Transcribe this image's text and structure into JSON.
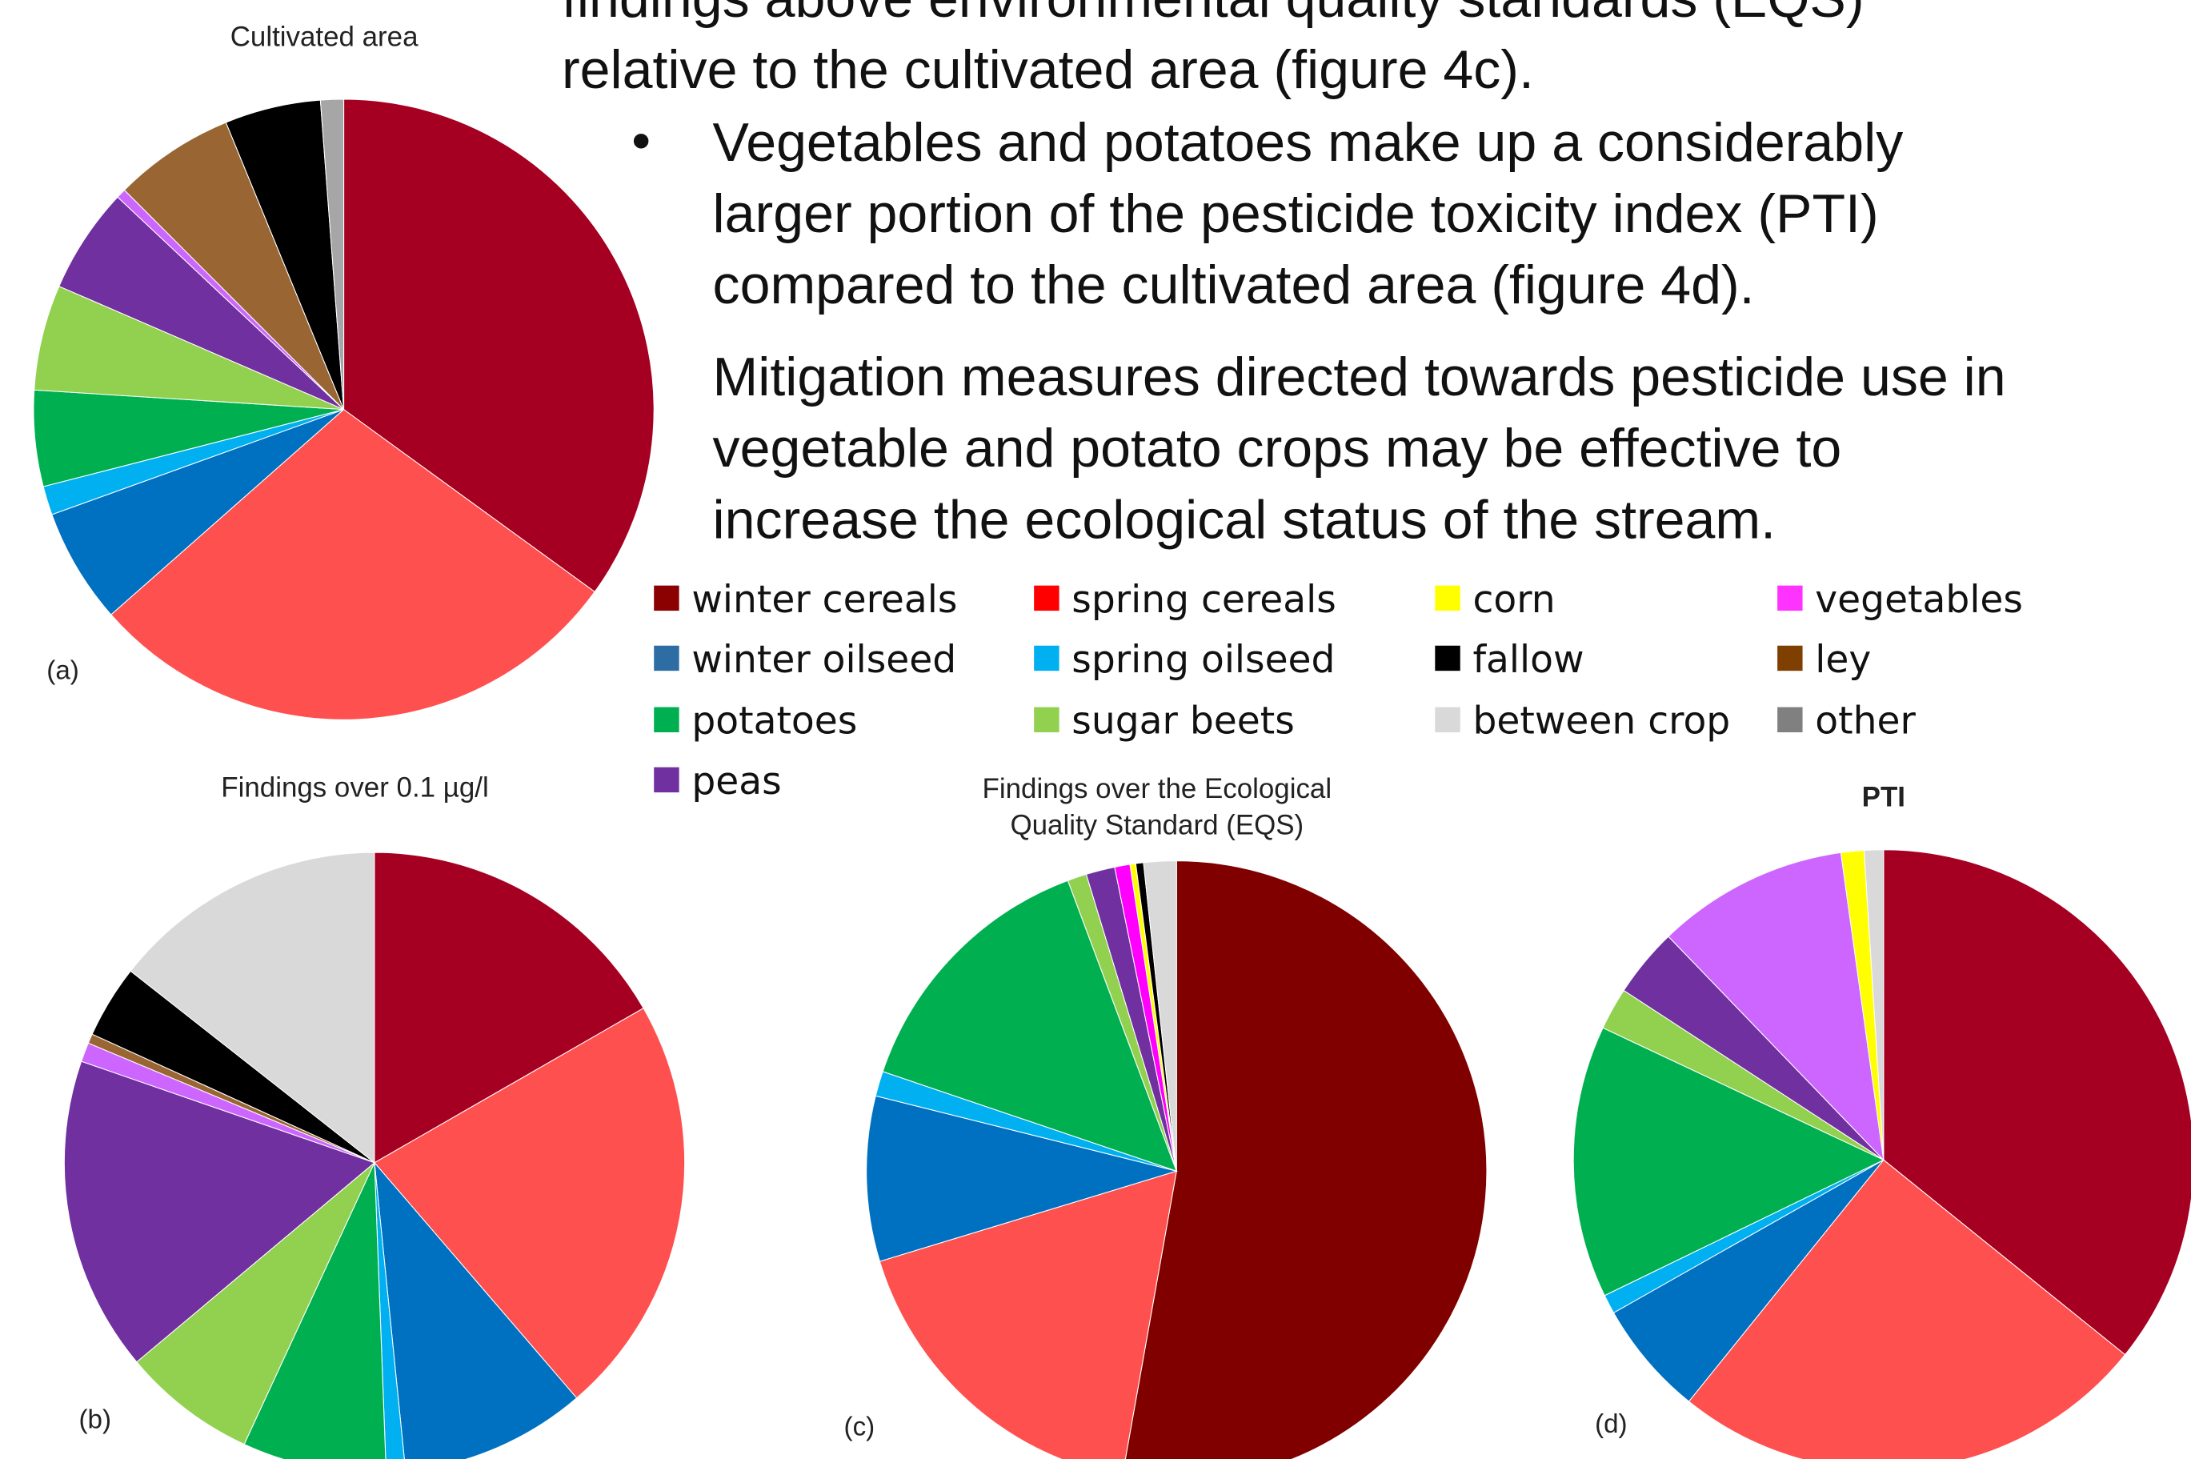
{
  "text": {
    "lines": [
      "findings above environmental quality standards (EQS)",
      "relative to the cultivated area (figure 4c)."
    ],
    "bullet": "•",
    "bullet_lines": [
      "Vegetables and potatoes make up a considerably",
      "larger portion of the pesticide toxicity index (PTI)",
      "compared to the cultivated area (figure 4d)."
    ],
    "paragraph": [
      "Mitigation measures directed towards pesticide use in",
      "vegetable and potato crops may be effective to",
      "increase the ecological status of the stream."
    ]
  },
  "legend": [
    {
      "name": "winter cereals",
      "color": "#8b0000"
    },
    {
      "name": "spring cereals",
      "color": "#ff0000"
    },
    {
      "name": "corn",
      "color": "#ffff00"
    },
    {
      "name": "vegetables",
      "color": "#ff33ff"
    },
    {
      "name": "winter oilseed",
      "color": "#2e6da4"
    },
    {
      "name": "spring oilseed",
      "color": "#00b0f0"
    },
    {
      "name": "fallow",
      "color": "#000000"
    },
    {
      "name": "ley",
      "color": "#7f3f00"
    },
    {
      "name": "potatoes",
      "color": "#00b050"
    },
    {
      "name": "sugar beets",
      "color": "#92d050"
    },
    {
      "name": "between crop",
      "color": "#d9d9d9"
    },
    {
      "name": "other",
      "color": "#808080"
    },
    {
      "name": "peas",
      "color": "#7030a0"
    }
  ],
  "chart_data": [
    {
      "type": "pie",
      "title": [
        "Cultivated area"
      ],
      "panel_label": "(a)",
      "values": [
        35,
        28.5,
        6,
        1.5,
        5,
        5.5,
        5.5,
        0.5,
        6.3,
        5.0,
        1.2
      ],
      "colors": [
        "#a50021",
        "#ff5050",
        "#0070c0",
        "#00b0f0",
        "#00b050",
        "#92d050",
        "#7030a0",
        "#cc66ff",
        "#996633",
        "#000000",
        "#a6a6a6"
      ]
    },
    {
      "type": "pie",
      "title": [
        "Findings over 0.1 µg/l"
      ],
      "panel_label": "(b)",
      "values": [
        16.7,
        22,
        9.7,
        1,
        7.5,
        7,
        16.4,
        1,
        0.5,
        3.8,
        14.4
      ],
      "colors": [
        "#a50021",
        "#ff5050",
        "#0070c0",
        "#00b0f0",
        "#00b050",
        "#92d050",
        "#7030a0",
        "#cc66ff",
        "#996633",
        "#000000",
        "#d9d9d9"
      ]
    },
    {
      "type": "pie",
      "title": [
        "Findings over the Ecological",
        "Quality Standard (EQS)"
      ],
      "panel_label": "(c)",
      "values": [
        52.8,
        17.5,
        8.6,
        1.3,
        14.1,
        1,
        1.5,
        0.8,
        0.3,
        0.4,
        1.7
      ],
      "colors": [
        "#800000",
        "#ff5050",
        "#0070c0",
        "#00b0f0",
        "#00b050",
        "#92d050",
        "#7030a0",
        "#ff00ff",
        "#ffff00",
        "#000000",
        "#d9d9d9"
      ]
    },
    {
      "type": "pie",
      "title": [
        "PTI"
      ],
      "panel_label": "(d)",
      "values": [
        35.8,
        25,
        6,
        1,
        14.2,
        2.2,
        3.6,
        10,
        1.2,
        1
      ],
      "colors": [
        "#a50021",
        "#ff5050",
        "#0070c0",
        "#00b0f0",
        "#00b050",
        "#92d050",
        "#7030a0",
        "#cc66ff",
        "#ffff00",
        "#d9d9d9"
      ]
    }
  ]
}
